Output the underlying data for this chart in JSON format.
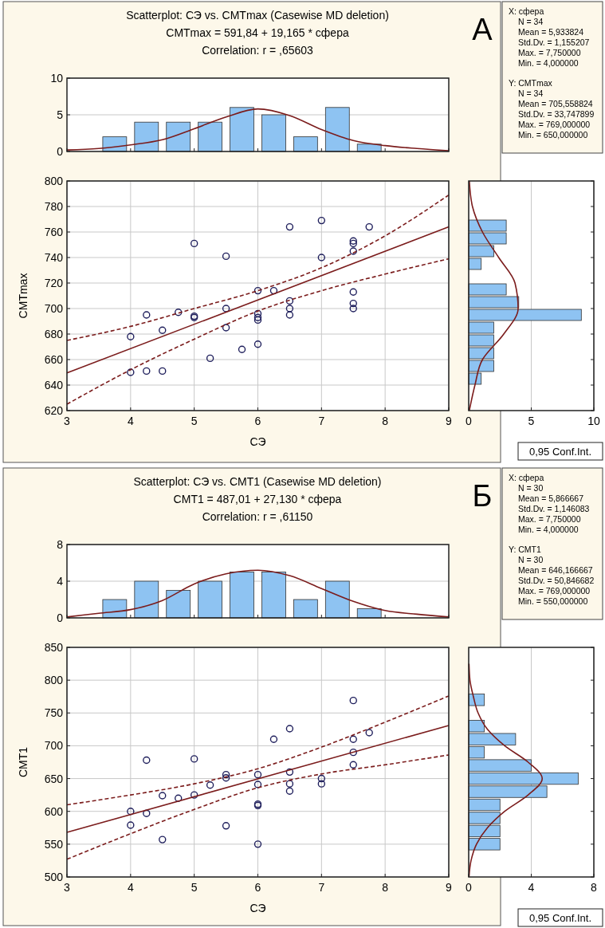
{
  "chart_data": [
    {
      "type": "histogram",
      "title": "Scatterplot: СЭ vs. CMTmax (Casewise MD deletion)",
      "subtitle": "CMTmax = 591,84 + 19,165 * сфера\nCorrelation: r = ,65603",
      "annotations": [
        "А"
      ],
      "xlim": [
        3,
        9
      ],
      "xticks": [
        3,
        4,
        5,
        6,
        7,
        8,
        9
      ],
      "ylim": [
        0,
        10
      ],
      "yticks": [
        0,
        5,
        10
      ],
      "tick_labels": "y",
      "grid": "y",
      "series": [
        {
          "type": "histogram",
          "bins": [
            3.5,
            4,
            4.5,
            5,
            5.5,
            6,
            6.5,
            7,
            7.5,
            8
          ],
          "values": [
            2,
            4,
            4,
            4,
            6,
            5,
            2,
            6,
            1
          ],
          "color": "#8ec3f2"
        },
        {
          "type": "line",
          "x": [
            3,
            3.5,
            4,
            4.5,
            5,
            5.5,
            6,
            6.5,
            7,
            7.5,
            8,
            8.5,
            9
          ],
          "values": [
            0.2,
            0.4,
            0.9,
            1.6,
            3.1,
            4.7,
            5.8,
            4.9,
            3.0,
            1.5,
            0.8,
            0.4,
            0.1
          ],
          "color": "#7b1c1c"
        }
      ]
    },
    {
      "type": "other",
      "annotations": [
        "X:  сфера",
        "N = 34",
        "Mean = 5,933824",
        "Std.Dv. = 1,155207",
        "Max. = 7,750000",
        "Min. = 4,000000",
        "Y:  CMTmax",
        "N = 34",
        "Mean = 705,558824",
        "Std.Dv. = 33,747899",
        "Max. = 769,000000",
        "Min. = 650,000000"
      ]
    },
    {
      "type": "scatter",
      "xlabel": "СЭ",
      "ylabel": "CMTmax",
      "xlim": [
        3,
        9
      ],
      "xticks": [
        3,
        4,
        5,
        6,
        7,
        8,
        9
      ],
      "ylim": [
        620,
        800
      ],
      "yticks": [
        620,
        640,
        660,
        680,
        700,
        720,
        740,
        760,
        780,
        800
      ],
      "grid": true,
      "annotations": [
        "0,95 Conf.Int."
      ],
      "series": [
        {
          "type": "scatter",
          "marker": "circle",
          "color": "#1f1f5c",
          "x": [
            4,
            4,
            4.25,
            4.25,
            4.5,
            4.5,
            4.75,
            5,
            5,
            5,
            5.25,
            5.5,
            5.5,
            5.5,
            5.75,
            6,
            6,
            6,
            6,
            6,
            6.25,
            6.5,
            6.5,
            6.5,
            6.5,
            7,
            7,
            7.5,
            7.5,
            7.5,
            7.5,
            7.5,
            7.5,
            7.75
          ],
          "values": [
            678,
            650,
            695,
            651,
            683,
            651,
            697,
            751,
            694,
            693,
            661,
            741,
            700,
            685,
            668,
            714,
            696,
            693,
            691,
            672,
            714,
            764,
            706,
            700,
            695,
            769,
            740,
            753,
            751,
            745,
            713,
            704,
            700,
            764
          ]
        },
        {
          "type": "line",
          "color": "#7b1c1c",
          "x": [
            3,
            9
          ],
          "values": [
            649.5,
            764
          ]
        },
        {
          "type": "line",
          "line_style": "dashed",
          "color": "#7b1c1c",
          "x": [
            3,
            4,
            5,
            6,
            7,
            8,
            9
          ],
          "values": [
            675,
            686,
            700,
            714,
            732,
            757,
            789
          ]
        },
        {
          "type": "line",
          "line_style": "dashed",
          "color": "#7b1c1c",
          "x": [
            3,
            4,
            5,
            6,
            7,
            8,
            9
          ],
          "values": [
            625,
            652,
            676,
            698,
            714,
            727,
            739
          ]
        }
      ]
    },
    {
      "type": "histogram",
      "orientation": "horizontal",
      "xlim": [
        0,
        10
      ],
      "xticks": [
        0,
        5,
        10
      ],
      "ylim": [
        620,
        800
      ],
      "yticks": [
        620,
        640,
        660,
        680,
        700,
        720,
        740,
        760,
        780,
        800
      ],
      "tick_labels": "x",
      "grid": "x",
      "series": [
        {
          "type": "histogram",
          "bins": [
            640,
            650,
            660,
            670,
            680,
            690,
            700,
            710,
            720,
            730,
            740,
            750,
            760,
            770
          ],
          "values": [
            1,
            2,
            2,
            2,
            2,
            9,
            4,
            3,
            0,
            1,
            2,
            3,
            3
          ],
          "color": "#8ec3f2"
        },
        {
          "type": "line",
          "x": [
            620,
            640,
            660,
            680,
            700,
            720,
            740,
            760,
            780,
            800
          ],
          "values": [
            0.05,
            0.5,
            1.1,
            2.8,
            3.95,
            3.7,
            2.4,
            1.1,
            0.3,
            0.05
          ],
          "color": "#7b1c1c"
        }
      ]
    },
    {
      "type": "histogram",
      "title": "Scatterplot: СЭ vs. CMT1 (Casewise MD deletion)",
      "subtitle": "CMT1 = 487,01 + 27,130 * сфера\nCorrelation: r = ,61150",
      "annotations": [
        "Б"
      ],
      "xlim": [
        3,
        9
      ],
      "xticks": [
        3,
        4,
        5,
        6,
        7,
        8,
        9
      ],
      "ylim": [
        0,
        8
      ],
      "yticks": [
        0,
        4,
        8
      ],
      "tick_labels": "y",
      "grid": "y",
      "series": [
        {
          "type": "histogram",
          "bins": [
            3.5,
            4,
            4.5,
            5,
            5.5,
            6,
            6.5,
            7,
            7.5,
            8
          ],
          "values": [
            2,
            4,
            3,
            4,
            5,
            5,
            2,
            4,
            1
          ],
          "color": "#8ec3f2"
        },
        {
          "type": "line",
          "x": [
            3,
            3.5,
            4,
            4.5,
            5,
            5.5,
            6,
            6.5,
            7,
            7.5,
            8,
            8.5,
            9
          ],
          "values": [
            0.1,
            0.5,
            0.9,
            1.9,
            3.7,
            4.8,
            5.2,
            4.6,
            3.2,
            1.8,
            0.8,
            0.4,
            0.1
          ],
          "color": "#7b1c1c"
        }
      ]
    },
    {
      "type": "other",
      "annotations": [
        "X:  сфера",
        "N = 30",
        "Mean = 5,866667",
        "Std.Dv. = 1,146083",
        "Max. = 7,750000",
        "Min. = 4,000000",
        "Y:  CMT1",
        "N = 30",
        "Mean = 646,166667",
        "Std.Dv. = 50,846682",
        "Max. = 769,000000",
        "Min. = 550,000000"
      ]
    },
    {
      "type": "scatter",
      "xlabel": "СЭ",
      "ylabel": "CMT1",
      "xlim": [
        3,
        9
      ],
      "xticks": [
        3,
        4,
        5,
        6,
        7,
        8,
        9
      ],
      "ylim": [
        500,
        850
      ],
      "yticks": [
        500,
        550,
        600,
        650,
        700,
        750,
        800,
        850
      ],
      "grid": true,
      "annotations": [
        "0,95 Conf.Int."
      ],
      "series": [
        {
          "type": "scatter",
          "marker": "circle",
          "color": "#1f1f5c",
          "x": [
            4,
            4,
            4.25,
            4.25,
            4.5,
            4.5,
            4.75,
            5,
            5,
            5.25,
            5.5,
            5.5,
            5.5,
            6,
            6,
            6,
            6,
            6,
            6.25,
            6.5,
            6.5,
            6.5,
            6.5,
            7,
            7,
            7.5,
            7.5,
            7.5,
            7.5,
            7.75
          ],
          "values": [
            600,
            579,
            678,
            597,
            624,
            557,
            620,
            680,
            625,
            640,
            656,
            651,
            578,
            656,
            641,
            611,
            609,
            550,
            710,
            726,
            660,
            642,
            631,
            650,
            642,
            769,
            710,
            690,
            671,
            720
          ]
        },
        {
          "type": "line",
          "color": "#7b1c1c",
          "x": [
            3,
            9
          ],
          "values": [
            568,
            731
          ]
        },
        {
          "type": "line",
          "line_style": "dashed",
          "color": "#7b1c1c",
          "x": [
            3,
            4,
            5,
            6,
            7,
            8,
            9
          ],
          "values": [
            610,
            625,
            642,
            665,
            698,
            736,
            776
          ]
        },
        {
          "type": "line",
          "line_style": "dashed",
          "color": "#7b1c1c",
          "x": [
            3,
            4,
            5,
            6,
            7,
            8,
            9
          ],
          "values": [
            527,
            566,
            603,
            636,
            657,
            671,
            686
          ]
        }
      ]
    },
    {
      "type": "histogram",
      "orientation": "horizontal",
      "xlim": [
        0,
        8
      ],
      "xticks": [
        0,
        4,
        8
      ],
      "ylim": [
        500,
        850
      ],
      "yticks": [
        500,
        550,
        600,
        650,
        700,
        750,
        800,
        850
      ],
      "tick_labels": "x",
      "grid": "x",
      "series": [
        {
          "type": "histogram",
          "bins": [
            540,
            560,
            580,
            600,
            620,
            640,
            660,
            680,
            700,
            720,
            740,
            760,
            780
          ],
          "values": [
            2,
            2,
            2,
            2,
            5,
            7,
            4,
            1,
            3,
            1,
            0,
            1
          ],
          "color": "#8ec3f2"
        },
        {
          "type": "line",
          "x": [
            500,
            525,
            550,
            575,
            600,
            625,
            650,
            675,
            700,
            725,
            750,
            775,
            800,
            825
          ],
          "values": [
            0.02,
            0.15,
            0.5,
            1.2,
            2.3,
            3.8,
            4.7,
            3.8,
            2.3,
            1.2,
            0.6,
            0.3,
            0.08,
            0.02
          ],
          "color": "#7b1c1c"
        }
      ]
    }
  ]
}
